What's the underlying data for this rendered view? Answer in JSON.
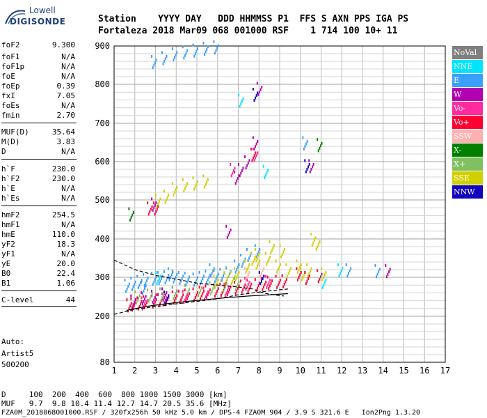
{
  "logo": {
    "line1": "Lowell",
    "line2": "DIGISONDE"
  },
  "header": {
    "line1": "Station    YYYY DAY   DDD HHMMSS P1  FFS S AXN PPS IGA PS",
    "line2": "Fortaleza 2018 Mar09 068 001000 RSF    1 714 100 10+ 11"
  },
  "params": [
    {
      "k": "foF2",
      "v": "9.300"
    },
    {
      "k": "foF1",
      "v": "N/A"
    },
    {
      "k": "foF1p",
      "v": "N/A"
    },
    {
      "k": "foE",
      "v": "N/A"
    },
    {
      "k": "foEp",
      "v": "0.39"
    },
    {
      "k": "fxI",
      "v": "7.05"
    },
    {
      "k": "foEs",
      "v": "N/A"
    },
    {
      "k": "fmin",
      "v": "2.70"
    },
    {
      "k": "MUF(D)",
      "v": "35.64"
    },
    {
      "k": "M(D)",
      "v": "3.83"
    },
    {
      "k": "D",
      "v": "N/A"
    },
    {
      "k": "h`F",
      "v": "230.0"
    },
    {
      "k": "h`F2",
      "v": "230.0"
    },
    {
      "k": "h`E",
      "v": "N/A"
    },
    {
      "k": "h`Es",
      "v": "N/A"
    },
    {
      "k": "hmF2",
      "v": "254.5"
    },
    {
      "k": "hmF1",
      "v": "N/A"
    },
    {
      "k": "hmE",
      "v": "110.0"
    },
    {
      "k": "yF2",
      "v": "18.3"
    },
    {
      "k": "yF1",
      "v": "N/A"
    },
    {
      "k": "yE",
      "v": "20.0"
    },
    {
      "k": "B0",
      "v": "22.4"
    },
    {
      "k": "B1",
      "v": "1.06"
    },
    {
      "k": "C-level",
      "v": "44"
    }
  ],
  "auto": {
    "l1": "Auto:",
    "l2": "Artist5",
    "l3": "500200"
  },
  "legend": [
    {
      "label": "NoVal",
      "color": "#7f7f7f"
    },
    {
      "label": "NNE",
      "color": "#00e5ff"
    },
    {
      "label": "E",
      "color": "#3aa0ff"
    },
    {
      "label": "W",
      "color": "#b000b0"
    },
    {
      "label": "Vo-",
      "color": "#ff2aa0"
    },
    {
      "label": "Vo+",
      "color": "#ff0030"
    },
    {
      "label": "SSW",
      "color": "#ffb0b0"
    },
    {
      "label": "X-",
      "color": "#008000"
    },
    {
      "label": "X+",
      "color": "#80c060"
    },
    {
      "label": "SSE",
      "color": "#d0d000"
    },
    {
      "label": "NNW",
      "color": "#1000c0"
    }
  ],
  "footer": {
    "line1": "D     100  200  400  600  800 1000 1500 3000 [km]",
    "line2": "MUF   9.7  9.8 10.4 11.4 12.7 14.7 20.5 35.6 [MHz]",
    "line3": "FZA0M_2018068001000.RSF / 320fx256h 50 kHz 5.0 km / DPS-4 FZA0M 904 / 3.9 S 321.6 E   Ion2Png 1.3.20"
  },
  "chart_data": {
    "type": "scatter",
    "xlabel": "",
    "ylabel": "",
    "xlim": [
      1,
      17
    ],
    "ylim": [
      80,
      900
    ],
    "x_ticks": [
      1,
      2,
      3,
      4,
      5,
      6,
      7,
      8,
      9,
      10,
      11,
      12,
      13,
      14,
      15,
      16,
      17
    ],
    "y_ticks": [
      80,
      200,
      300,
      400,
      500,
      600,
      700,
      800,
      900
    ],
    "grid": true,
    "legend_position": "right",
    "series": [
      {
        "name": "E",
        "color": "#3aa0ff",
        "points": [
          [
            1.7,
            280
          ],
          [
            2.0,
            285
          ],
          [
            2.3,
            290
          ],
          [
            2.6,
            295
          ],
          [
            3.0,
            298
          ],
          [
            3.3,
            300
          ],
          [
            3.6,
            302
          ],
          [
            4.0,
            304
          ],
          [
            4.3,
            300
          ],
          [
            4.6,
            298
          ],
          [
            5.0,
            296
          ],
          [
            5.3,
            300
          ],
          [
            5.6,
            303
          ],
          [
            6.0,
            305
          ],
          [
            6.3,
            308
          ],
          [
            6.6,
            312
          ],
          [
            7.0,
            330
          ],
          [
            7.3,
            345
          ],
          [
            7.6,
            360
          ],
          [
            8.0,
            370
          ],
          [
            3.0,
            860
          ],
          [
            3.5,
            870
          ],
          [
            4.0,
            880
          ],
          [
            4.5,
            885
          ],
          [
            5.0,
            890
          ],
          [
            5.5,
            895
          ],
          [
            6.0,
            898
          ],
          [
            2.5,
            275
          ],
          [
            3.8,
            310
          ],
          [
            5.8,
            320
          ],
          [
            10.3,
            650
          ],
          [
            12.4,
            320
          ],
          [
            13.8,
            318
          ]
        ]
      },
      {
        "name": "SSE",
        "color": "#d0d000",
        "points": [
          [
            6.0,
            290
          ],
          [
            6.5,
            300
          ],
          [
            7.0,
            310
          ],
          [
            7.5,
            330
          ],
          [
            8.0,
            340
          ],
          [
            8.5,
            350
          ],
          [
            9.0,
            330
          ],
          [
            9.5,
            320
          ],
          [
            10.0,
            330
          ],
          [
            10.5,
            320
          ],
          [
            10.7,
            400
          ],
          [
            10.9,
            390
          ],
          [
            8.7,
            380
          ],
          [
            9.2,
            370
          ],
          [
            7.8,
            350
          ],
          [
            4.0,
            530
          ],
          [
            4.5,
            540
          ],
          [
            5.0,
            545
          ],
          [
            5.5,
            550
          ],
          [
            3.2,
            500
          ],
          [
            3.6,
            510
          ],
          [
            8.0,
            360
          ],
          [
            10.2,
            310
          ],
          [
            11.2,
            310
          ],
          [
            6.8,
            300
          ]
        ]
      },
      {
        "name": "Vo+",
        "color": "#ff0030",
        "points": [
          [
            1.8,
            230
          ],
          [
            2.0,
            232
          ],
          [
            2.3,
            235
          ],
          [
            2.6,
            238
          ],
          [
            3.0,
            240
          ],
          [
            3.3,
            243
          ],
          [
            3.6,
            246
          ],
          [
            4.0,
            250
          ],
          [
            4.3,
            252
          ],
          [
            4.6,
            255
          ],
          [
            5.0,
            258
          ],
          [
            5.3,
            262
          ],
          [
            5.6,
            265
          ],
          [
            6.0,
            268
          ],
          [
            6.3,
            270
          ],
          [
            6.6,
            272
          ],
          [
            7.0,
            275
          ],
          [
            7.3,
            278
          ],
          [
            7.6,
            280
          ],
          [
            8.0,
            282
          ],
          [
            8.3,
            285
          ],
          [
            8.6,
            288
          ],
          [
            9.0,
            290
          ],
          [
            9.3,
            292
          ],
          [
            10.0,
            310
          ],
          [
            10.4,
            300
          ],
          [
            11.0,
            305
          ],
          [
            7.8,
            620
          ],
          [
            2.8,
            480
          ],
          [
            3.1,
            480
          ]
        ]
      },
      {
        "name": "W",
        "color": "#b000b0",
        "points": [
          [
            2.0,
            240
          ],
          [
            2.5,
            248
          ],
          [
            3.0,
            252
          ],
          [
            3.5,
            258
          ],
          [
            4.0,
            262
          ],
          [
            7.0,
            560
          ],
          [
            7.2,
            580
          ],
          [
            7.5,
            600
          ],
          [
            7.9,
            650
          ],
          [
            8.1,
            790
          ],
          [
            10.6,
            590
          ],
          [
            14.3,
            318
          ],
          [
            3.0,
            490
          ],
          [
            6.6,
            420
          ]
        ]
      },
      {
        "name": "X+",
        "color": "#80c060",
        "points": [
          [
            2.2,
            250
          ],
          [
            2.8,
            255
          ],
          [
            3.4,
            258
          ],
          [
            4.0,
            262
          ],
          [
            4.6,
            266
          ],
          [
            5.2,
            270
          ],
          [
            5.8,
            274
          ],
          [
            6.4,
            280
          ],
          [
            7.0,
            285
          ]
        ]
      },
      {
        "name": "Vo-",
        "color": "#ff2aa0",
        "points": [
          [
            2.5,
            235
          ],
          [
            3.5,
            245
          ],
          [
            4.5,
            252
          ],
          [
            5.5,
            260
          ],
          [
            6.5,
            270
          ],
          [
            7.5,
            285
          ],
          [
            8.5,
            290
          ],
          [
            6.8,
            580
          ],
          [
            7.9,
            620
          ]
        ]
      },
      {
        "name": "NNE",
        "color": "#00e5ff",
        "points": [
          [
            8.4,
            575
          ],
          [
            7.2,
            760
          ],
          [
            11.2,
            290
          ],
          [
            12.0,
            320
          ],
          [
            3.2,
            300
          ]
        ]
      },
      {
        "name": "NNW",
        "color": "#1000c0",
        "points": [
          [
            7.9,
            775
          ],
          [
            10.4,
            590
          ],
          [
            3.6,
            250
          ],
          [
            8.2,
            300
          ]
        ]
      },
      {
        "name": "X-",
        "color": "#008000",
        "points": [
          [
            1.9,
            465
          ],
          [
            11.0,
            645
          ]
        ]
      },
      {
        "name": "SSW",
        "color": "#ffb0b0",
        "points": [
          [
            7.5,
            310
          ],
          [
            8.2,
            320
          ]
        ]
      }
    ],
    "lines": [
      {
        "style": "dashed",
        "points": [
          [
            1,
            345
          ],
          [
            2,
            320
          ],
          [
            3,
            305
          ],
          [
            4,
            295
          ],
          [
            5,
            285
          ],
          [
            6,
            280
          ],
          [
            7,
            275
          ],
          [
            7.7,
            270
          ],
          [
            8.2,
            260
          ],
          [
            8.7,
            255
          ],
          [
            9.2,
            252
          ]
        ]
      },
      {
        "style": "dashed",
        "points": [
          [
            1,
            205
          ],
          [
            2,
            218
          ],
          [
            3,
            225
          ],
          [
            4,
            232
          ],
          [
            5,
            238
          ],
          [
            6,
            245
          ],
          [
            7,
            255
          ],
          [
            8,
            262
          ],
          [
            9,
            268
          ],
          [
            9.4,
            270
          ]
        ]
      },
      {
        "style": "solid",
        "points": [
          [
            1.6,
            215
          ],
          [
            2.5,
            225
          ],
          [
            3.5,
            232
          ],
          [
            4.5,
            238
          ],
          [
            5.5,
            243
          ],
          [
            6.5,
            248
          ],
          [
            7.5,
            252
          ],
          [
            8.5,
            255
          ],
          [
            9.4,
            258
          ]
        ]
      }
    ]
  }
}
